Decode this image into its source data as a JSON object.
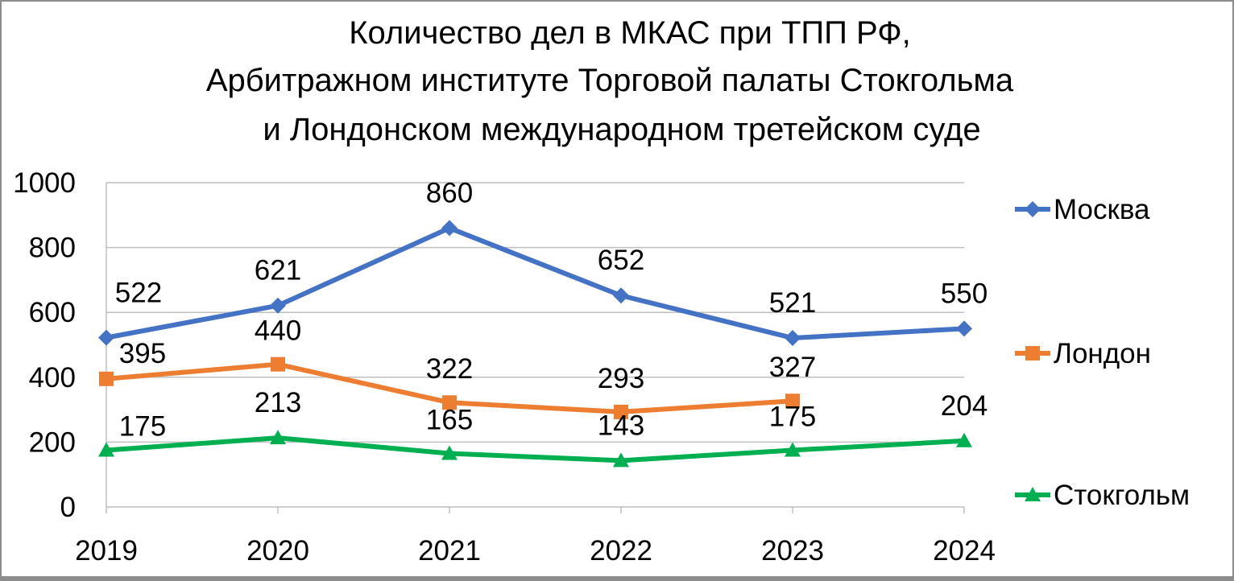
{
  "chart_data": {
    "type": "line",
    "title": [
      "Количество дел в МКАС при ТПП РФ,",
      "Арбитражном институте Торговой палаты Стокгольма",
      "и Лондонском международном третейском суде"
    ],
    "xlabel": "",
    "ylabel": "",
    "ylim": [
      0,
      1000
    ],
    "y_ticks": [
      "0",
      "200",
      "400",
      "600",
      "800",
      "1000"
    ],
    "categories": [
      "2019",
      "2020",
      "2021",
      "2022",
      "2023",
      "2024"
    ],
    "grid": true,
    "legend_position": "right",
    "series": [
      {
        "name": "Москва",
        "color": "#4472C4",
        "marker": "diamond",
        "values": [
          522,
          621,
          860,
          652,
          521,
          550
        ],
        "labels": [
          "522",
          "621",
          "860",
          "652",
          "521",
          "550"
        ]
      },
      {
        "name": "Лондон",
        "color": "#ED7D31",
        "marker": "square",
        "values": [
          395,
          440,
          322,
          293,
          327,
          null
        ],
        "labels": [
          "395",
          "440",
          "322",
          "293",
          "327",
          null
        ]
      },
      {
        "name": "Стокгольм",
        "color": "#00B050",
        "marker": "triangle",
        "values": [
          175,
          213,
          165,
          143,
          175,
          204
        ],
        "labels": [
          "175",
          "213",
          "165",
          "143",
          "175",
          "204"
        ]
      }
    ]
  }
}
